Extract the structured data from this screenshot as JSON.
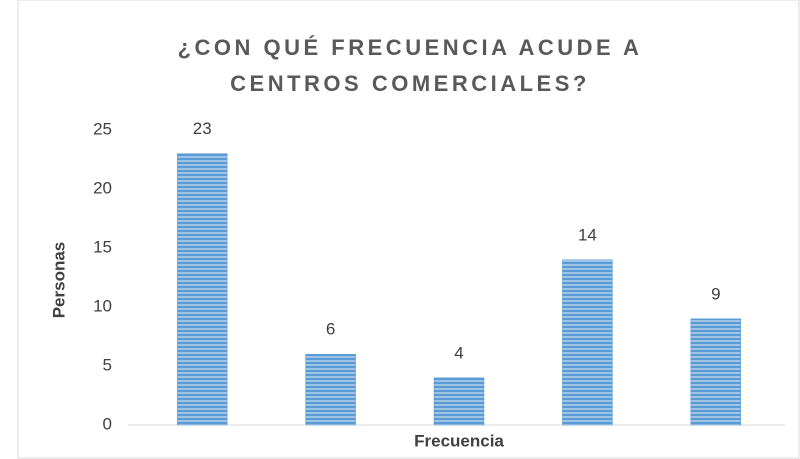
{
  "chart_data": {
    "type": "bar",
    "title": "¿CON QUÉ FRECUENCIA ACUDE A CENTROS COMERCIALES?",
    "x_label": "Frecuencia",
    "y_label": "Personas",
    "categories": [
      null,
      null,
      null,
      null,
      null
    ],
    "values": [
      23,
      6,
      4,
      14,
      9
    ],
    "color": "#5b9bd5",
    "ylim": [
      0,
      25
    ],
    "yticks": [
      0,
      5,
      10,
      15,
      20,
      25
    ],
    "grid": false
  }
}
